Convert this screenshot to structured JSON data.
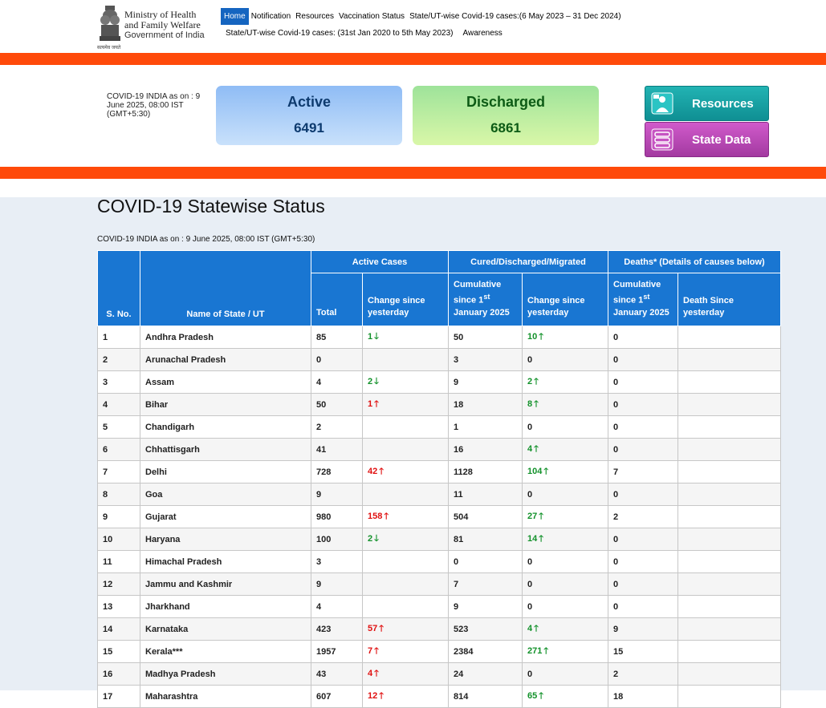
{
  "header": {
    "ministry_line1": "Ministry of Health",
    "ministry_line2": "and Family Welfare",
    "ministry_line3": "Government of India",
    "emblem_caption": "सत्यमेव जयते",
    "nav_row1": [
      "Home",
      "Notification",
      "Resources",
      "Vaccination Status",
      "State/UT-wise Covid-19 cases:(6 May 2023 – 31 Dec 2024)"
    ],
    "nav_row2": [
      "State/UT-wise Covid-19 cases: (31st Jan 2020 to 5th May 2023)",
      "Awareness"
    ]
  },
  "summary": {
    "as_of": "COVID-19 INDIA as on : 9 June 2025, 08:00 IST (GMT+5:30)",
    "active_label": "Active",
    "active_value": "6491",
    "discharged_label": "Discharged",
    "discharged_value": "6861",
    "resources_button": "Resources",
    "state_data_button": "State Data"
  },
  "main": {
    "title": "COVID-19 Statewise Status",
    "as_of": "COVID-19 INDIA as on : 9 June 2025, 08:00 IST (GMT+5:30)"
  },
  "table": {
    "group_headers": {
      "active": "Active Cases",
      "cured": "Cured/Discharged/Migrated",
      "deaths": "Deaths* (Details of causes below)"
    },
    "col_sno": "S. No.",
    "col_state": "Name of State / UT",
    "col_total": "Total",
    "col_change": "Change since yesterday",
    "col_cumulative_a": "Cumulative since 1",
    "col_cumulative_sup": "st",
    "col_cumulative_b": "January 2025",
    "col_death_since": "Death Since yesterday",
    "rows": [
      {
        "sno": "1",
        "state": "Andhra Pradesh",
        "active": "85",
        "active_change": "1",
        "active_dir": "down-green",
        "cured": "50",
        "cured_change": "10",
        "cured_dir": "up-green",
        "deaths": "0",
        "death_change": ""
      },
      {
        "sno": "2",
        "state": "Arunachal Pradesh",
        "active": "0",
        "active_change": "",
        "active_dir": "",
        "cured": "3",
        "cured_change": "0",
        "cured_dir": "",
        "deaths": "0",
        "death_change": ""
      },
      {
        "sno": "3",
        "state": "Assam",
        "active": "4",
        "active_change": "2",
        "active_dir": "down-green",
        "cured": "9",
        "cured_change": "2",
        "cured_dir": "up-green",
        "deaths": "0",
        "death_change": ""
      },
      {
        "sno": "4",
        "state": "Bihar",
        "active": "50",
        "active_change": "1",
        "active_dir": "up-red",
        "cured": "18",
        "cured_change": "8",
        "cured_dir": "up-green",
        "deaths": "0",
        "death_change": ""
      },
      {
        "sno": "5",
        "state": "Chandigarh",
        "active": "2",
        "active_change": "",
        "active_dir": "",
        "cured": "1",
        "cured_change": "0",
        "cured_dir": "",
        "deaths": "0",
        "death_change": ""
      },
      {
        "sno": "6",
        "state": "Chhattisgarh",
        "active": "41",
        "active_change": "",
        "active_dir": "",
        "cured": "16",
        "cured_change": "4",
        "cured_dir": "up-green",
        "deaths": "0",
        "death_change": ""
      },
      {
        "sno": "7",
        "state": "Delhi",
        "active": "728",
        "active_change": "42",
        "active_dir": "up-red",
        "cured": "1128",
        "cured_change": "104",
        "cured_dir": "up-green",
        "deaths": "7",
        "death_change": ""
      },
      {
        "sno": "8",
        "state": "Goa",
        "active": "9",
        "active_change": "",
        "active_dir": "",
        "cured": "11",
        "cured_change": "0",
        "cured_dir": "",
        "deaths": "0",
        "death_change": ""
      },
      {
        "sno": "9",
        "state": "Gujarat",
        "active": "980",
        "active_change": "158",
        "active_dir": "up-red",
        "cured": "504",
        "cured_change": "27",
        "cured_dir": "up-green",
        "deaths": "2",
        "death_change": ""
      },
      {
        "sno": "10",
        "state": "Haryana",
        "active": "100",
        "active_change": "2",
        "active_dir": "down-green",
        "cured": "81",
        "cured_change": "14",
        "cured_dir": "up-green",
        "deaths": "0",
        "death_change": ""
      },
      {
        "sno": "11",
        "state": "Himachal Pradesh",
        "active": "3",
        "active_change": "",
        "active_dir": "",
        "cured": "0",
        "cured_change": "0",
        "cured_dir": "",
        "deaths": "0",
        "death_change": ""
      },
      {
        "sno": "12",
        "state": "Jammu and Kashmir",
        "active": "9",
        "active_change": "",
        "active_dir": "",
        "cured": "7",
        "cured_change": "0",
        "cured_dir": "",
        "deaths": "0",
        "death_change": ""
      },
      {
        "sno": "13",
        "state": "Jharkhand",
        "active": "4",
        "active_change": "",
        "active_dir": "",
        "cured": "9",
        "cured_change": "0",
        "cured_dir": "",
        "deaths": "0",
        "death_change": ""
      },
      {
        "sno": "14",
        "state": "Karnataka",
        "active": "423",
        "active_change": "57",
        "active_dir": "up-red",
        "cured": "523",
        "cured_change": "4",
        "cured_dir": "up-green",
        "deaths": "9",
        "death_change": ""
      },
      {
        "sno": "15",
        "state": "Kerala***",
        "active": "1957",
        "active_change": "7",
        "active_dir": "up-red",
        "cured": "2384",
        "cured_change": "271",
        "cured_dir": "up-green",
        "deaths": "15",
        "death_change": ""
      },
      {
        "sno": "16",
        "state": "Madhya Pradesh",
        "active": "43",
        "active_change": "4",
        "active_dir": "up-red",
        "cured": "24",
        "cured_change": "0",
        "cured_dir": "",
        "deaths": "2",
        "death_change": ""
      },
      {
        "sno": "17",
        "state": "Maharashtra",
        "active": "607",
        "active_change": "12",
        "active_dir": "up-red",
        "cured": "814",
        "cured_change": "65",
        "cured_dir": "up-green",
        "deaths": "18",
        "death_change": ""
      }
    ]
  },
  "colors": {
    "orange_band": "#ff4a0a",
    "table_header": "#1976d2",
    "nav_active": "#1565c0",
    "up_red": "#e01010",
    "green": "#12912a"
  },
  "icons": {
    "up_arrow": "🡑",
    "down_arrow": "🡓"
  }
}
